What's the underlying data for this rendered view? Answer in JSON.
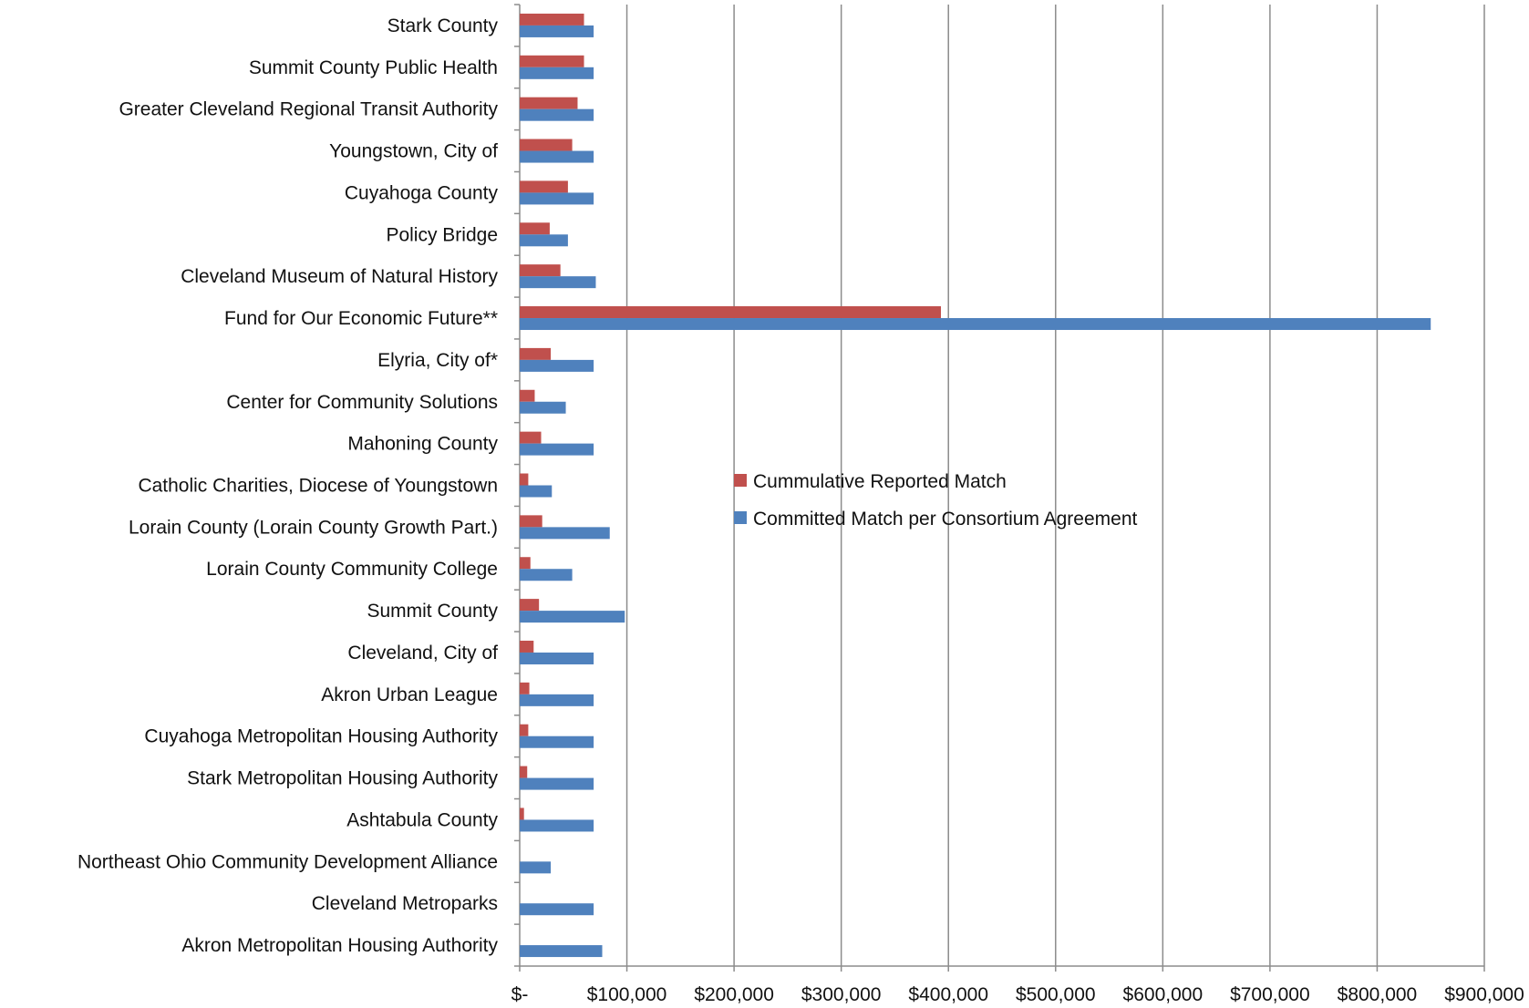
{
  "chart_data": {
    "type": "bar",
    "orientation": "horizontal",
    "title": "",
    "xlabel": "",
    "ylabel": "",
    "xlim": [
      0,
      900000
    ],
    "xticks": [
      0,
      100000,
      200000,
      300000,
      400000,
      500000,
      600000,
      700000,
      800000,
      900000
    ],
    "xtick_labels": [
      "$-",
      "$100,000",
      "$200,000",
      "$300,000",
      "$400,000",
      "$500,000",
      "$600,000",
      "$700,000",
      "$800,000",
      "$900,000"
    ],
    "grid": "vertical gridlines",
    "legend_position": "center-right",
    "categories": [
      "Stark County",
      "Summit County Public Health",
      "Greater Cleveland Regional Transit Authority",
      "Youngstown, City of",
      "Cuyahoga County",
      "Policy Bridge",
      "Cleveland Museum of Natural History",
      "Fund for Our Economic Future**",
      "Elyria, City of*",
      "Center for Community Solutions",
      "Mahoning County",
      "Catholic Charities, Diocese of Youngstown",
      "Lorain County (Lorain County Growth Part.)",
      "Lorain County Community College",
      "Summit County",
      "Cleveland, City of",
      "Akron Urban League",
      "Cuyahoga Metropolitan Housing Authority",
      "Stark Metropolitan Housing Authority",
      "Ashtabula County",
      "Northeast Ohio Community Development Alliance",
      "Cleveland Metroparks",
      "Akron Metropolitan Housing Authority"
    ],
    "series": [
      {
        "name": "Cummulative Reported Match",
        "color": "#c0504d",
        "values": [
          60000,
          60000,
          54000,
          49000,
          45000,
          28000,
          38000,
          393000,
          29000,
          14000,
          20000,
          8000,
          21000,
          10000,
          18000,
          13000,
          9000,
          8000,
          7000,
          4000,
          0,
          0,
          0
        ]
      },
      {
        "name": "Committed Match per Consortium Agreement",
        "color": "#4f81bd",
        "values": [
          69000,
          69000,
          69000,
          69000,
          69000,
          45000,
          71000,
          850000,
          69000,
          43000,
          69000,
          30000,
          84000,
          49000,
          98000,
          69000,
          69000,
          69000,
          69000,
          69000,
          29000,
          69000,
          77000
        ]
      }
    ]
  }
}
